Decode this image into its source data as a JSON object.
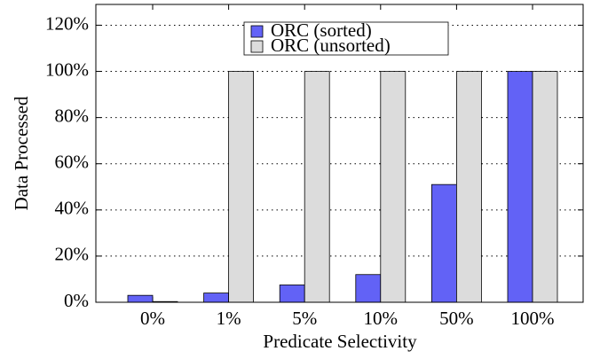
{
  "chart_data": {
    "type": "bar",
    "x_label": "Predicate Selectivity",
    "y_label": "Data Processed",
    "categories": [
      "0%",
      "1%",
      "5%",
      "10%",
      "50%",
      "100%"
    ],
    "series": [
      {
        "name": "ORC (sorted)",
        "color": "#6262f6",
        "values": [
          3,
          4,
          7.5,
          12,
          51,
          100
        ]
      },
      {
        "name": "ORC (unsorted)",
        "color": "#dcdcdc",
        "values": [
          0.3,
          100,
          100,
          100,
          100,
          100
        ]
      }
    ],
    "ylim": [
      0,
      129
    ],
    "yticks": [
      {
        "value": 0,
        "label": "0%"
      },
      {
        "value": 20,
        "label": "20%"
      },
      {
        "value": 40,
        "label": "40%"
      },
      {
        "value": 60,
        "label": "60%"
      },
      {
        "value": 80,
        "label": "80%"
      },
      {
        "value": 100,
        "label": "100%"
      },
      {
        "value": 120,
        "label": "120%"
      }
    ],
    "grid": true,
    "legend": "top"
  }
}
